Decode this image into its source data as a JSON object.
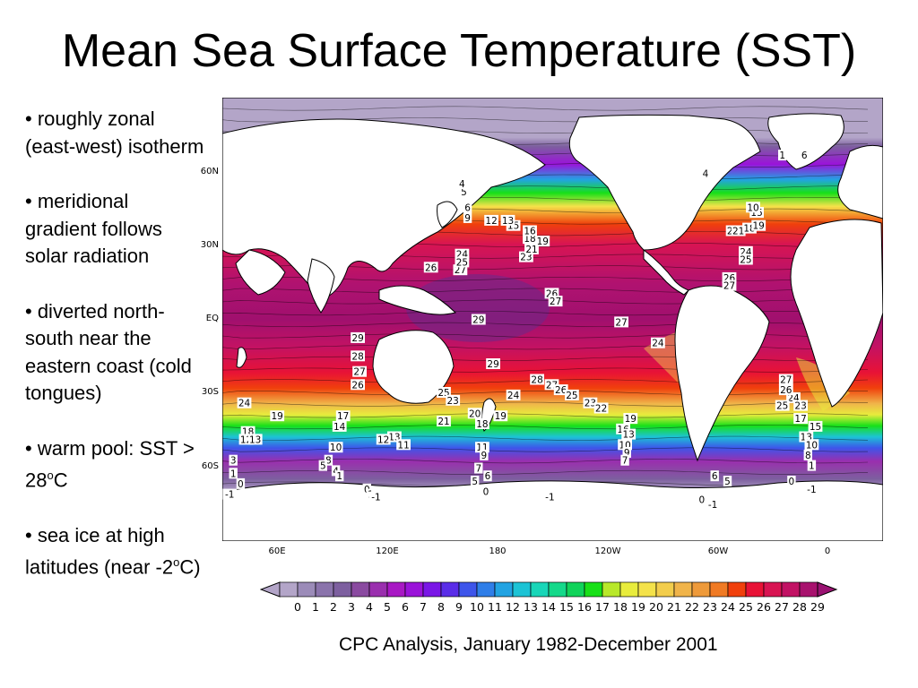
{
  "slide": {
    "title": "Mean Sea Surface Temperature (SST)",
    "caption": "CPC Analysis, January 1982-December 2001"
  },
  "bullets": [
    {
      "text": "• roughly zonal (east-west) isotherm"
    },
    {
      "text": "• meridional gradient follows solar radiation"
    },
    {
      "text": "• diverted north-south near the eastern coast (cold tongues)"
    },
    {
      "pre": "• warm pool: SST > 28",
      "sup": "o",
      "post": "C"
    },
    {
      "pre": "• sea ice at high latitudes (near -2",
      "sup": "o",
      "post": "C)"
    }
  ],
  "map": {
    "lat_labels": [
      "60N",
      "30N",
      "EQ",
      "30S",
      "60S"
    ],
    "lat_values": [
      60,
      30,
      0,
      -30,
      -60
    ],
    "lon_labels": [
      "60E",
      "120E",
      "180",
      "120W",
      "60W",
      "0"
    ],
    "lon_values": [
      60,
      120,
      180,
      240,
      300,
      360
    ],
    "lon_range": [
      34,
      395
    ],
    "lat_range": [
      -80,
      90
    ],
    "colorbar": {
      "labels": [
        "0",
        "1",
        "2",
        "3",
        "4",
        "5",
        "6",
        "7",
        "8",
        "9",
        "10",
        "11",
        "12",
        "13",
        "14",
        "15",
        "16",
        "17",
        "18",
        "19",
        "20",
        "21",
        "22",
        "23",
        "24",
        "25",
        "26",
        "27",
        "28",
        "29"
      ],
      "colors": [
        "#b3a5c8",
        "#9b8bb8",
        "#8a73ab",
        "#7d5f9f",
        "#8a4aa0",
        "#9a2fae",
        "#a818c4",
        "#9a13d9",
        "#7a16e6",
        "#5a2de8",
        "#3e55ea",
        "#2f7ee8",
        "#22a3e2",
        "#1cc3d5",
        "#18d6b8",
        "#14d98a",
        "#10d35a",
        "#18e018",
        "#b8e82a",
        "#e8ec3c",
        "#f4e24a",
        "#f2cd4c",
        "#f0b44a",
        "#ee9a3a",
        "#f07a24",
        "#f0400c",
        "#e81236",
        "#d81452",
        "#c21264",
        "#a8126e"
      ],
      "left_cap_color": "#b3a5c8",
      "right_cap_color": "#9a1272"
    },
    "labels": [
      {
        "v": "29",
        "lon": 174,
        "lat": 5
      },
      {
        "v": "29",
        "lon": 108,
        "lat": -2
      },
      {
        "v": "28",
        "lon": 108,
        "lat": -9
      },
      {
        "v": "27",
        "lon": 109,
        "lat": -15
      },
      {
        "v": "26",
        "lon": 108,
        "lat": -20
      },
      {
        "v": "29",
        "lon": 182,
        "lat": -12
      },
      {
        "v": "28",
        "lon": 206,
        "lat": -18
      },
      {
        "v": "27",
        "lon": 214,
        "lat": -20
      },
      {
        "v": "26",
        "lon": 219,
        "lat": -22
      },
      {
        "v": "25",
        "lon": 225,
        "lat": -24
      },
      {
        "v": "27",
        "lon": 252,
        "lat": 4
      },
      {
        "v": "24",
        "lon": 272,
        "lat": -4
      },
      {
        "v": "26",
        "lon": 214,
        "lat": 15
      },
      {
        "v": "27",
        "lon": 216,
        "lat": 12
      },
      {
        "v": "26",
        "lon": 148,
        "lat": 25
      },
      {
        "v": "27",
        "lon": 164,
        "lat": 24
      },
      {
        "v": "24",
        "lon": 165,
        "lat": 30
      },
      {
        "v": "25",
        "lon": 165,
        "lat": 27
      },
      {
        "v": "23",
        "lon": 200,
        "lat": 29
      },
      {
        "v": "21",
        "lon": 203,
        "lat": 32
      },
      {
        "v": "19",
        "lon": 209,
        "lat": 35
      },
      {
        "v": "18",
        "lon": 202,
        "lat": 36
      },
      {
        "v": "16",
        "lon": 202,
        "lat": 39
      },
      {
        "v": "15",
        "lon": 193,
        "lat": 41
      },
      {
        "v": "13",
        "lon": 190,
        "lat": 43
      },
      {
        "v": "12",
        "lon": 181,
        "lat": 43
      },
      {
        "v": "9",
        "lon": 168,
        "lat": 44
      },
      {
        "v": "6",
        "lon": 168,
        "lat": 48
      },
      {
        "v": "5",
        "lon": 166,
        "lat": 54
      },
      {
        "v": "4",
        "lon": 165,
        "lat": 57
      },
      {
        "v": "24",
        "lon": 346,
        "lat": -25
      },
      {
        "v": "26",
        "lon": 342,
        "lat": -22
      },
      {
        "v": "27",
        "lon": 342,
        "lat": -18
      },
      {
        "v": "25",
        "lon": 340,
        "lat": -28
      },
      {
        "v": "23",
        "lon": 350,
        "lat": -28
      },
      {
        "v": "26",
        "lon": 311,
        "lat": 21
      },
      {
        "v": "27",
        "lon": 311,
        "lat": 18
      },
      {
        "v": "24",
        "lon": 320,
        "lat": 31
      },
      {
        "v": "25",
        "lon": 320,
        "lat": 28
      },
      {
        "v": "22",
        "lon": 313,
        "lat": 39
      },
      {
        "v": "21",
        "lon": 316,
        "lat": 39
      },
      {
        "v": "18",
        "lon": 322,
        "lat": 40
      },
      {
        "v": "19",
        "lon": 327,
        "lat": 41
      },
      {
        "v": "15",
        "lon": 326,
        "lat": 46
      },
      {
        "v": "10",
        "lon": 324,
        "lat": 48
      },
      {
        "v": "4",
        "lon": 298,
        "lat": 61
      },
      {
        "v": "1",
        "lon": 340,
        "lat": 68
      },
      {
        "v": "6",
        "lon": 352,
        "lat": 68
      },
      {
        "v": "24",
        "lon": 46,
        "lat": -27
      },
      {
        "v": "19",
        "lon": 64,
        "lat": -32
      },
      {
        "v": "17",
        "lon": 100,
        "lat": -32
      },
      {
        "v": "14",
        "lon": 98,
        "lat": -36
      },
      {
        "v": "18",
        "lon": 48,
        "lat": -38
      },
      {
        "v": "12",
        "lon": 47,
        "lat": -41
      },
      {
        "v": "13",
        "lon": 52,
        "lat": -41
      },
      {
        "v": "10",
        "lon": 96,
        "lat": -44
      },
      {
        "v": "13",
        "lon": 128,
        "lat": -40
      },
      {
        "v": "12",
        "lon": 122,
        "lat": -41
      },
      {
        "v": "11",
        "lon": 133,
        "lat": -43
      },
      {
        "v": "20",
        "lon": 172,
        "lat": -31
      },
      {
        "v": "18",
        "lon": 176,
        "lat": -35
      },
      {
        "v": "21",
        "lon": 155,
        "lat": -34
      },
      {
        "v": "19",
        "lon": 186,
        "lat": -32
      },
      {
        "v": "25",
        "lon": 155,
        "lat": -23
      },
      {
        "v": "23",
        "lon": 160,
        "lat": -26
      },
      {
        "v": "24",
        "lon": 193,
        "lat": -24
      },
      {
        "v": "23",
        "lon": 235,
        "lat": -27
      },
      {
        "v": "22",
        "lon": 241,
        "lat": -29
      },
      {
        "v": "19",
        "lon": 257,
        "lat": -33
      },
      {
        "v": "16",
        "lon": 253,
        "lat": -37
      },
      {
        "v": "13",
        "lon": 256,
        "lat": -39
      },
      {
        "v": "10",
        "lon": 254,
        "lat": -43
      },
      {
        "v": "9",
        "lon": 255,
        "lat": -46
      },
      {
        "v": "7",
        "lon": 254,
        "lat": -49
      },
      {
        "v": "17",
        "lon": 350,
        "lat": -33
      },
      {
        "v": "15",
        "lon": 358,
        "lat": -36
      },
      {
        "v": "13",
        "lon": 353,
        "lat": -40
      },
      {
        "v": "10",
        "lon": 356,
        "lat": -43
      },
      {
        "v": "8",
        "lon": 354,
        "lat": -47
      },
      {
        "v": "1",
        "lon": 356,
        "lat": -51
      },
      {
        "v": "11",
        "lon": 176,
        "lat": -44
      },
      {
        "v": "9",
        "lon": 177,
        "lat": -47
      },
      {
        "v": "7",
        "lon": 174,
        "lat": -52
      },
      {
        "v": "6",
        "lon": 179,
        "lat": -55
      },
      {
        "v": "5",
        "lon": 172,
        "lat": -57
      },
      {
        "v": "0",
        "lon": 113,
        "lat": -60
      },
      {
        "v": "1",
        "lon": 115,
        "lat": -62
      },
      {
        "v": "-1",
        "lon": 118,
        "lat": -63
      },
      {
        "v": "0",
        "lon": 178,
        "lat": -61
      },
      {
        "v": "-1",
        "lon": 213,
        "lat": -63
      },
      {
        "v": "6",
        "lon": 303,
        "lat": -55
      },
      {
        "v": "5",
        "lon": 310,
        "lat": -57
      },
      {
        "v": "0",
        "lon": 345,
        "lat": -57
      },
      {
        "v": "-1",
        "lon": 356,
        "lat": -60
      },
      {
        "v": "0",
        "lon": 296,
        "lat": -64
      },
      {
        "v": "-1",
        "lon": 302,
        "lat": -66
      },
      {
        "v": "3",
        "lon": 40,
        "lat": -49
      },
      {
        "v": "1",
        "lon": 40,
        "lat": -54
      },
      {
        "v": "0",
        "lon": 44,
        "lat": -58
      },
      {
        "v": "-1",
        "lon": 38,
        "lat": -62
      },
      {
        "v": "8",
        "lon": 92,
        "lat": -49
      },
      {
        "v": "5",
        "lon": 89,
        "lat": -51
      },
      {
        "v": "4",
        "lon": 96,
        "lat": -53
      },
      {
        "v": "1",
        "lon": 98,
        "lat": -55
      }
    ]
  }
}
